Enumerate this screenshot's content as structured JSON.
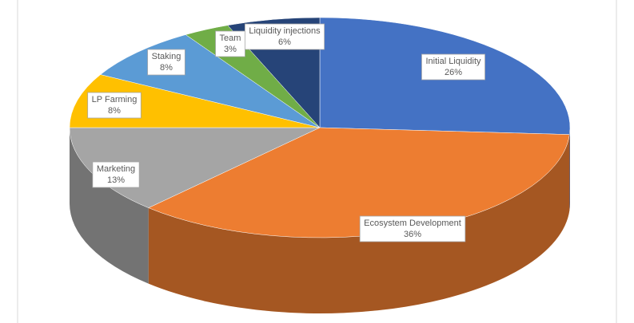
{
  "chart_data": {
    "type": "pie",
    "categories": [
      "Initial Liquidity",
      "Ecosystem Development",
      "Marketing",
      "LP Farming",
      "Staking",
      "Team",
      "Liquidity injections"
    ],
    "values": [
      26,
      36,
      13,
      8,
      8,
      3,
      6
    ],
    "value_labels": [
      "26%",
      "36%",
      "13%",
      "8%",
      "8%",
      "3%",
      "6%"
    ],
    "colors": [
      "#4472c4",
      "#ed7d31",
      "#a5a5a5",
      "#ffc000",
      "#5b9bd5",
      "#70ad47",
      "#264478"
    ]
  }
}
